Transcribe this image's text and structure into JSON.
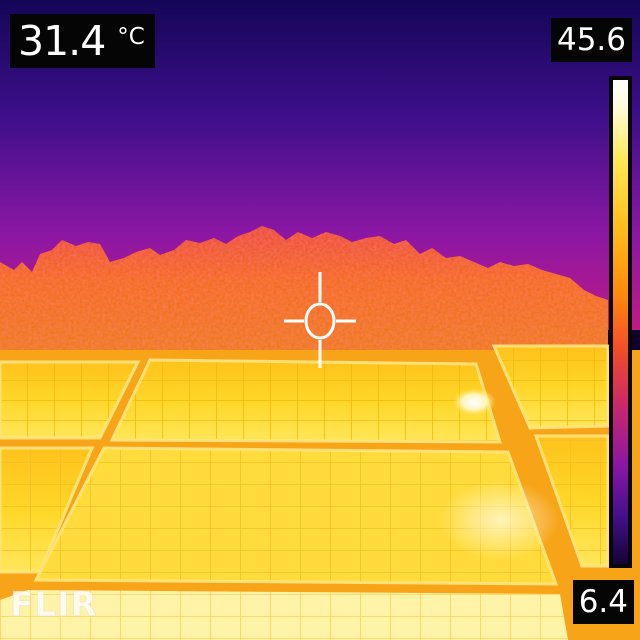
{
  "measurement": {
    "spot_temperature": "31.4",
    "unit": "°C"
  },
  "scale": {
    "max": "45.6",
    "min": "6.4",
    "palette": "iron"
  },
  "brand": {
    "logo_text": "FLIR"
  },
  "colors": {
    "sky_top": "#1c0a62",
    "sky_horizon": "#a6189c",
    "foliage": "#f0621c",
    "panel": "#ffd21a",
    "hot_spot": "#ffffff"
  },
  "scene": {
    "subjects": [
      "sky",
      "tree line",
      "solar panel array"
    ],
    "crosshair_icon": "spot-meter-crosshair-icon"
  }
}
